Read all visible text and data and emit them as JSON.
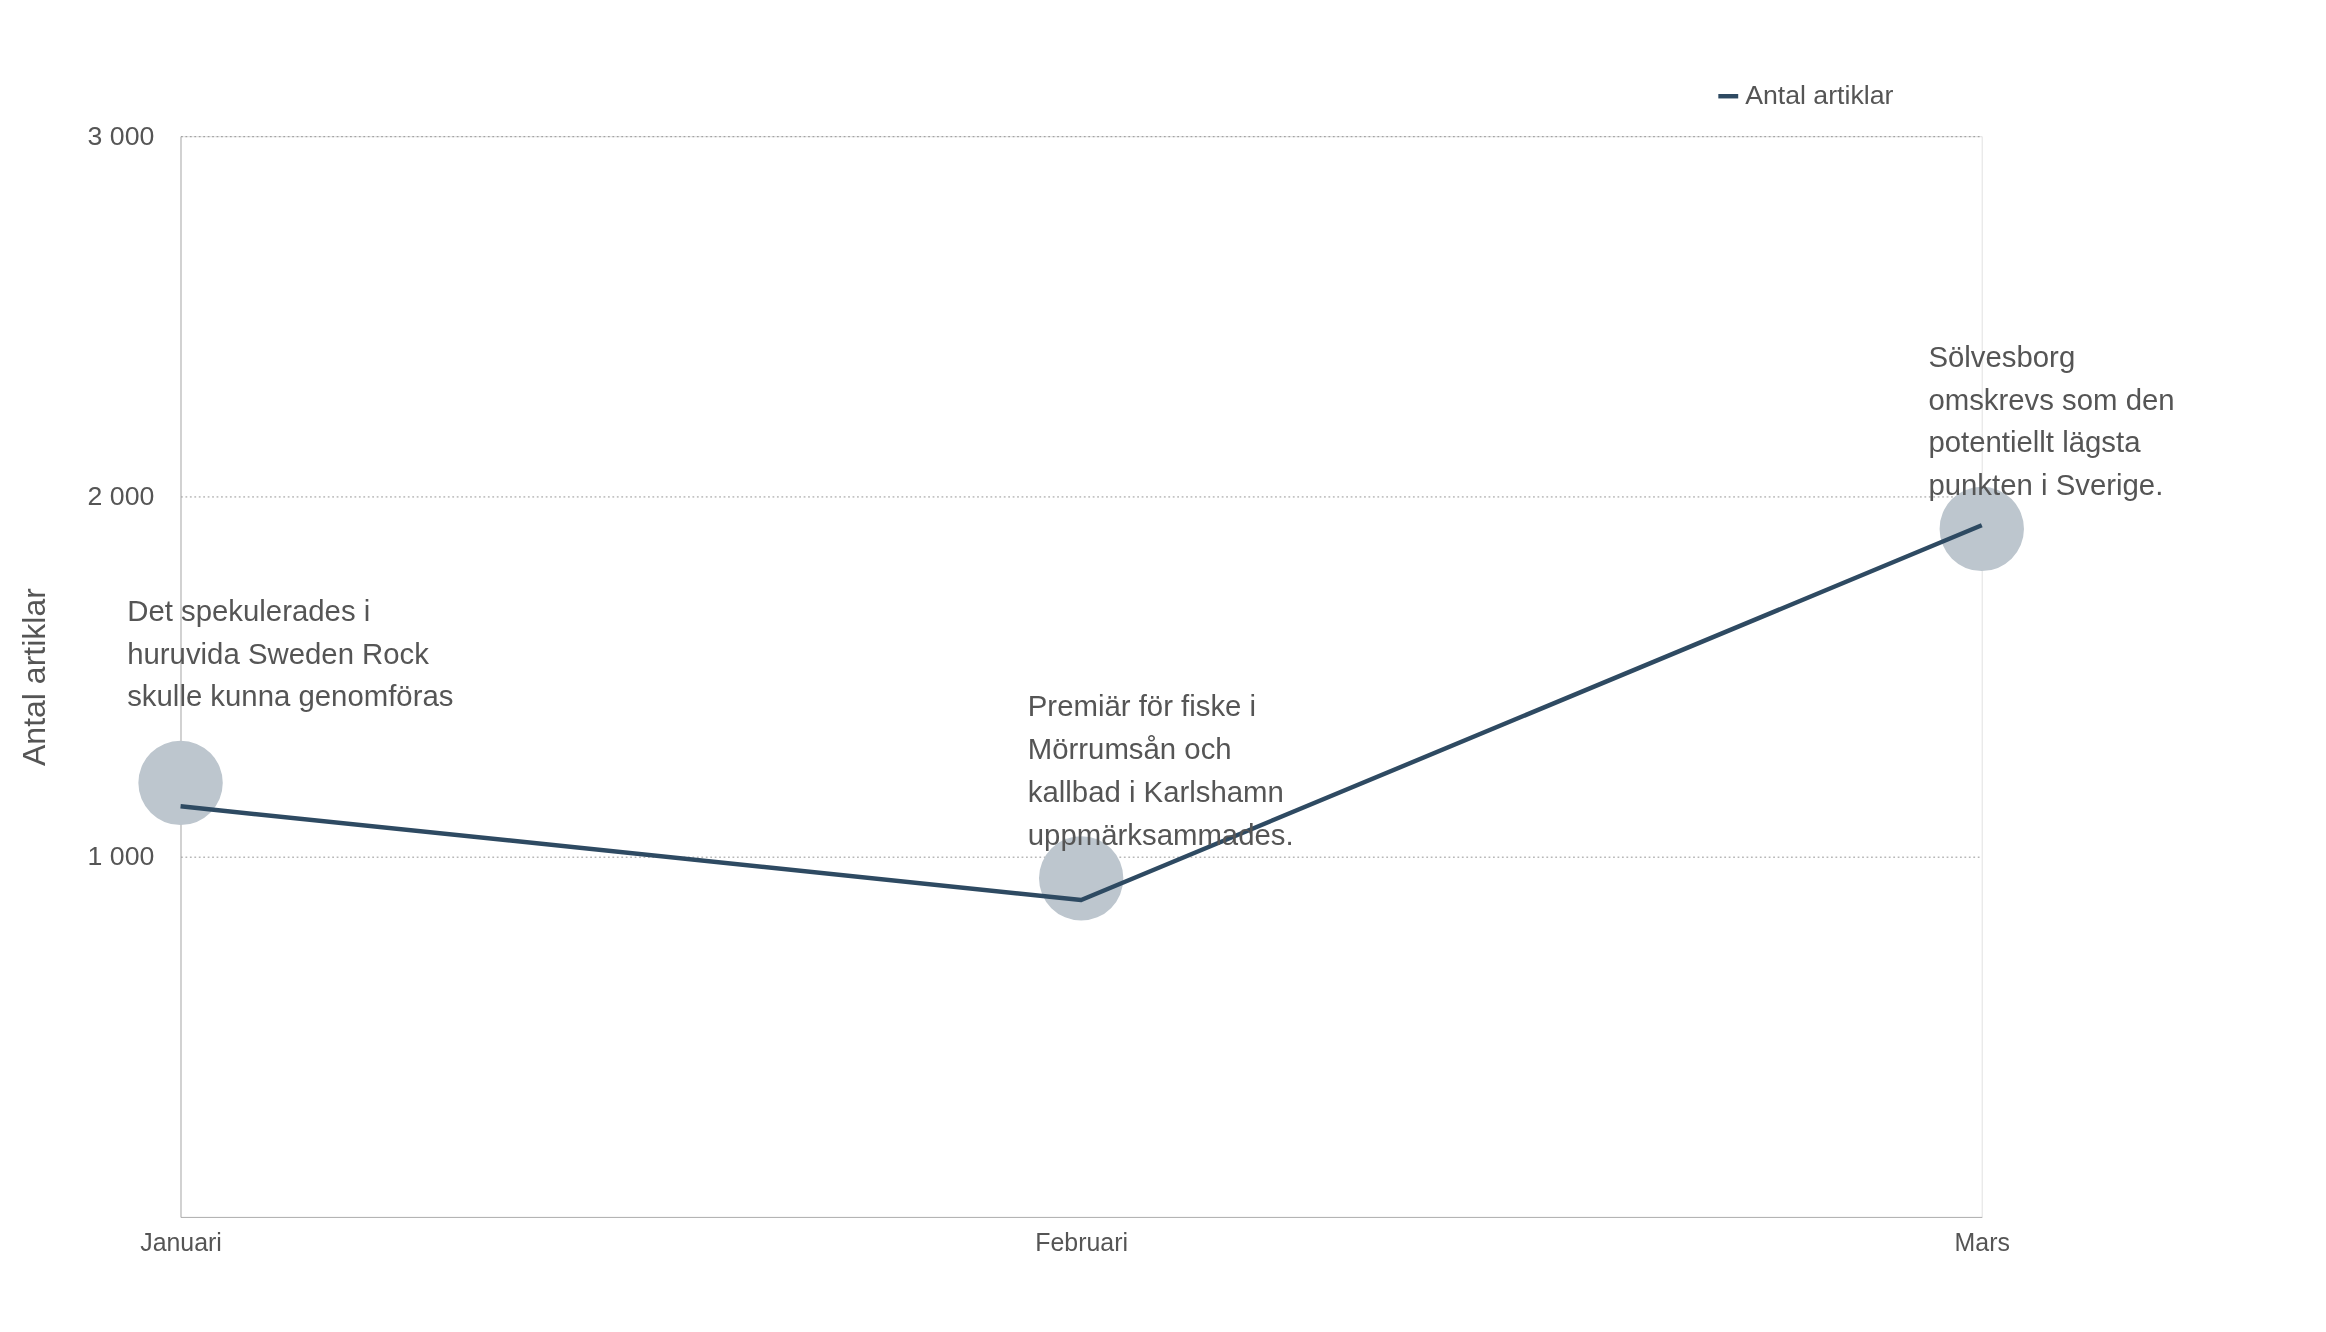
{
  "chart_data": {
    "type": "line",
    "ylabel": "Antal artiklar",
    "categories": [
      "Januari",
      "Februari",
      "Mars"
    ],
    "ylim": [
      0,
      3000
    ],
    "yticks": [
      {
        "value": 1000,
        "label": "1 000"
      },
      {
        "value": 2000,
        "label": "2 000"
      },
      {
        "value": 3000,
        "label": "3 000"
      }
    ],
    "grid": "y",
    "legend": "top right",
    "series": [
      {
        "name": "Antal artiklar",
        "color": "#2e4a62",
        "values": [
          1140,
          880,
          1920
        ]
      },
      {
        "type": "scatter",
        "marker": "circle",
        "color": "#bdc6ce",
        "values": [
          1205,
          940,
          1910
        ]
      }
    ],
    "annotations": [
      "Det spekulerades i\nhuruvida Sweden Rock\nskulle kunna genomföras",
      "Premiär för fiske i\nMörrumsån och\nkallbad i Karlshamn\nuppmärksammades.",
      "Sölvesborg\nomskrevs som den\npotentiellt lägsta\npunkten i Sverige."
    ]
  }
}
